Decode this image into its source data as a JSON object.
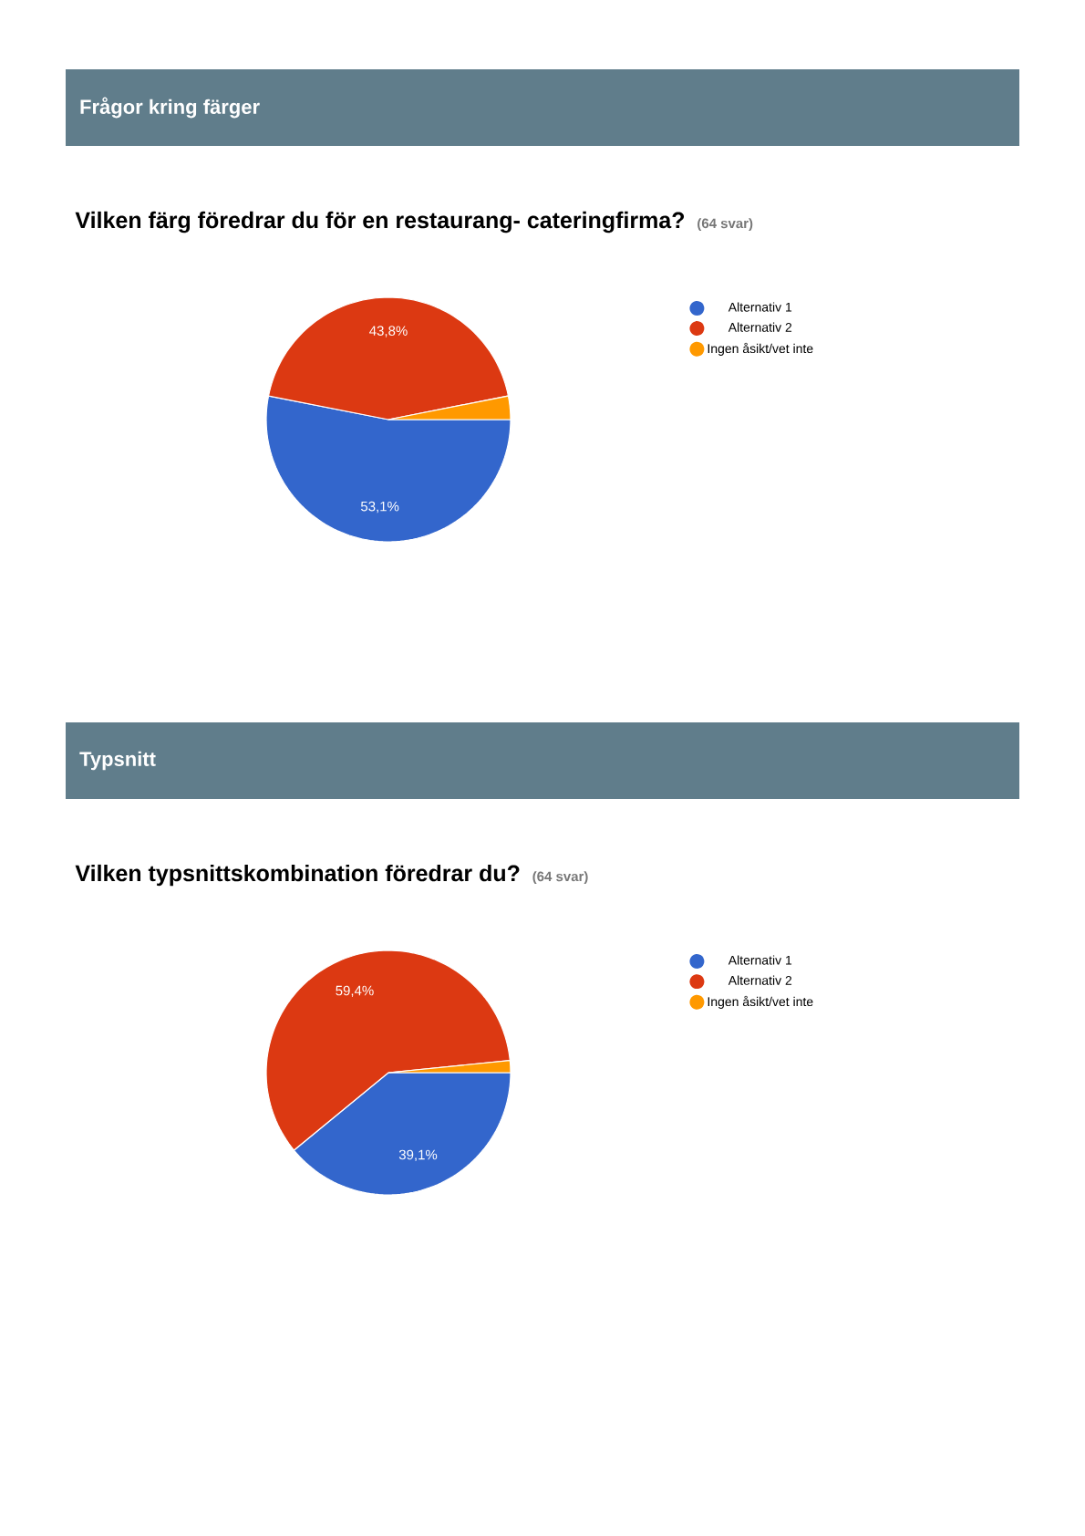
{
  "chart_data": [
    {
      "type": "pie",
      "title": "Frågor kring färger",
      "subtitle": "Vilken färg föredrar du för en restaurang- cateringfirma?",
      "annotations": [
        "(64 svar)"
      ],
      "categories": [
        "Alternativ 1",
        "Alternativ 2",
        "Ingen åsikt/vet inte"
      ],
      "values": [
        53.1,
        43.8,
        3.1
      ],
      "value_labels": [
        "53,1%",
        "43,8%",
        null
      ],
      "colors": [
        "#3366cc",
        "#dc3912",
        "#ff9900"
      ],
      "legend": "right"
    },
    {
      "type": "pie",
      "title": "Typsnitt",
      "subtitle": "Vilken typsnittskombination föredrar du?",
      "annotations": [
        "(64 svar)"
      ],
      "categories": [
        "Alternativ 1",
        "Alternativ 2",
        "Ingen åsikt/vet inte"
      ],
      "values": [
        39.1,
        59.4,
        1.6
      ],
      "value_labels": [
        "39,1%",
        "59,4%",
        null
      ],
      "colors": [
        "#3366cc",
        "#dc3912",
        "#ff9900"
      ],
      "legend": "right"
    }
  ]
}
